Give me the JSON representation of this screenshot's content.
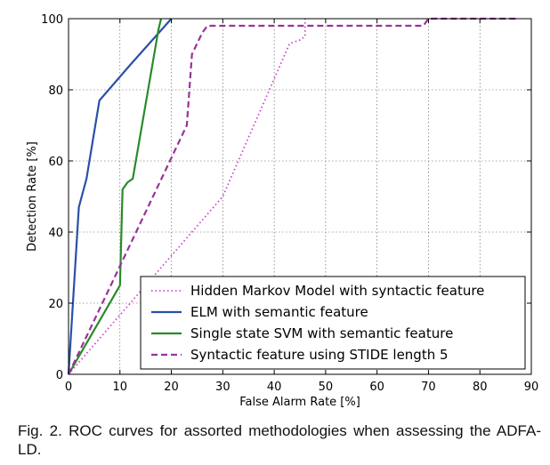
{
  "caption": "Fig. 2. ROC curves for assorted methodologies when assessing the ADFA-LD.",
  "chart_data": {
    "type": "line",
    "title": "",
    "xlabel": "False Alarm Rate [%]",
    "ylabel": "Detection Rate [%]",
    "xlim": [
      0,
      90
    ],
    "ylim": [
      0,
      100
    ],
    "xticks": [
      0,
      10,
      20,
      30,
      40,
      50,
      60,
      70,
      80,
      90
    ],
    "yticks": [
      0,
      20,
      40,
      60,
      80,
      100
    ],
    "grid": true,
    "legend_position": "bottom-right",
    "series": [
      {
        "name": "Hidden Markov Model with syntactic feature",
        "color": "#cc44cc",
        "style": "dotted",
        "points": [
          [
            0,
            0
          ],
          [
            30,
            50
          ],
          [
            43,
            93
          ],
          [
            45,
            94
          ],
          [
            46,
            95
          ],
          [
            46,
            100
          ]
        ]
      },
      {
        "name": "ELM with semantic feature",
        "color": "#2b4fa8",
        "style": "solid",
        "points": [
          [
            0,
            0
          ],
          [
            2,
            47
          ],
          [
            3.5,
            55
          ],
          [
            6,
            77
          ],
          [
            12,
            87
          ],
          [
            20,
            100
          ]
        ]
      },
      {
        "name": "Single state SVM with semantic feature",
        "color": "#2a8a2a",
        "style": "solid",
        "points": [
          [
            0,
            0
          ],
          [
            10,
            25
          ],
          [
            10.5,
            52
          ],
          [
            11.5,
            54
          ],
          [
            12.5,
            55
          ],
          [
            17.5,
            97
          ],
          [
            18,
            100
          ]
        ]
      },
      {
        "name": "Syntactic feature using STIDE length 5",
        "color": "#993399",
        "style": "dashed",
        "points": [
          [
            0,
            0
          ],
          [
            23,
            70
          ],
          [
            24,
            90
          ],
          [
            26,
            96
          ],
          [
            27,
            98
          ],
          [
            69,
            98
          ],
          [
            70,
            100
          ],
          [
            87,
            100
          ]
        ]
      }
    ]
  }
}
